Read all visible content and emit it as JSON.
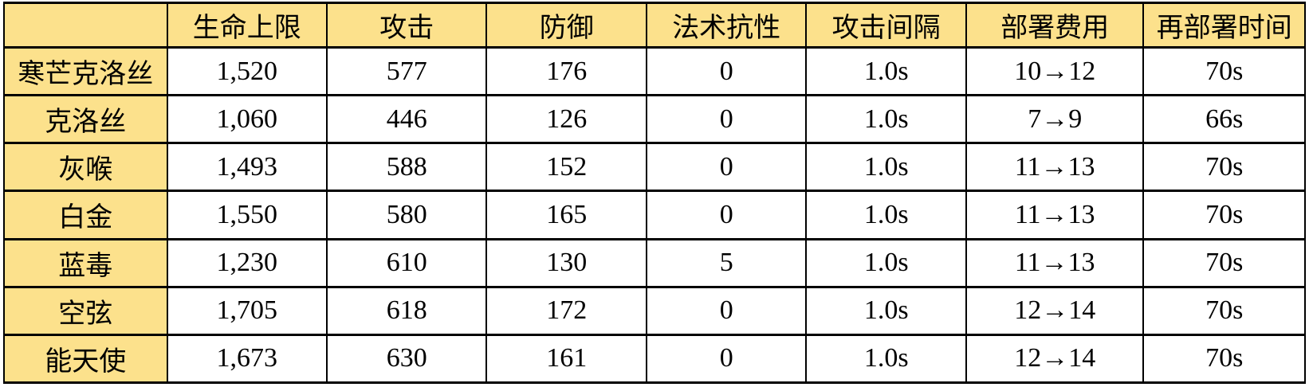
{
  "colors": {
    "header_bg": "#FCE18C",
    "row_bg": "#FFFFFF",
    "border": "#000000",
    "text": "#000000"
  },
  "chart_data": {
    "type": "table",
    "title": "",
    "columns": [
      "",
      "生命上限",
      "攻击",
      "防御",
      "法术抗性",
      "攻击间隔",
      "部署费用",
      "再部署时间"
    ],
    "column_keys": [
      "name",
      "hp",
      "atk",
      "def",
      "res",
      "interval",
      "cost",
      "redeploy"
    ],
    "rows": [
      {
        "name": "寒芒克洛丝",
        "values": [
          "1,520",
          "577",
          "176",
          "0",
          "1.0s",
          "10→12",
          "70s"
        ]
      },
      {
        "name": "克洛丝",
        "values": [
          "1,060",
          "446",
          "126",
          "0",
          "1.0s",
          "7→9",
          "66s"
        ]
      },
      {
        "name": "灰喉",
        "values": [
          "1,493",
          "588",
          "152",
          "0",
          "1.0s",
          "11→13",
          "70s"
        ]
      },
      {
        "name": "白金",
        "values": [
          "1,550",
          "580",
          "165",
          "0",
          "1.0s",
          "11→13",
          "70s"
        ]
      },
      {
        "name": "蓝毒",
        "values": [
          "1,230",
          "610",
          "130",
          "5",
          "1.0s",
          "11→13",
          "70s"
        ]
      },
      {
        "name": "空弦",
        "values": [
          "1,705",
          "618",
          "172",
          "0",
          "1.0s",
          "12→14",
          "70s"
        ]
      },
      {
        "name": "能天使",
        "values": [
          "1,673",
          "630",
          "161",
          "0",
          "1.0s",
          "12→14",
          "70s"
        ]
      }
    ],
    "layout": {
      "header_row_highlighted": true,
      "name_column_highlighted": true,
      "grid": true
    }
  }
}
